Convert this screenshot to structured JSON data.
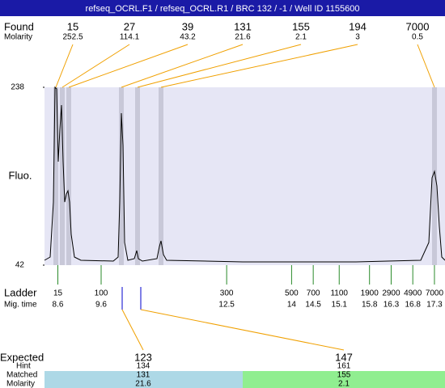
{
  "header": {
    "title": "refseq_OCRL.F1 / refseq_OCRL.R1 / BRC 132 / -1 / Well ID 1155600"
  },
  "found": {
    "label": "Found",
    "molarity_label": "Molarity",
    "peaks": [
      {
        "size": 15,
        "molarity": 252.5
      },
      {
        "size": 27,
        "molarity": 114.1
      },
      {
        "size": 39,
        "molarity": 43.2
      },
      {
        "size": 131,
        "molarity": 21.6
      },
      {
        "size": 155,
        "molarity": 2.1
      },
      {
        "size": 194,
        "molarity": 3
      },
      {
        "size": 7000,
        "molarity": 0.5
      }
    ]
  },
  "y_axis": {
    "label": "Fluo.",
    "ylim": [
      42,
      238
    ],
    "yticks": [
      42,
      238
    ]
  },
  "ladder": {
    "label": "Ladder",
    "time_label": "Mig. time",
    "bands": [
      {
        "size": 15,
        "time": 8.6
      },
      {
        "size": 100,
        "time": 9.6
      },
      {
        "size": 300,
        "time": 12.5
      },
      {
        "size": 500,
        "time": 14
      },
      {
        "size": 700,
        "time": 14.5
      },
      {
        "size": 1100,
        "time": 15.1
      },
      {
        "size": 1900,
        "time": 15.8
      },
      {
        "size": 2900,
        "time": 16.3
      },
      {
        "size": 4900,
        "time": 16.8
      },
      {
        "size": 7000,
        "time": 17.3
      }
    ]
  },
  "expected": {
    "label": "Expected",
    "hint_label": "Hint",
    "matched_label": "Matched",
    "molarity_label": "Molarity",
    "items": [
      {
        "expected": 123,
        "hint": 134,
        "matched": 131,
        "molarity": 21.6
      },
      {
        "expected": 147,
        "hint": 161,
        "matched": 155,
        "molarity": 2.1
      }
    ]
  }
}
